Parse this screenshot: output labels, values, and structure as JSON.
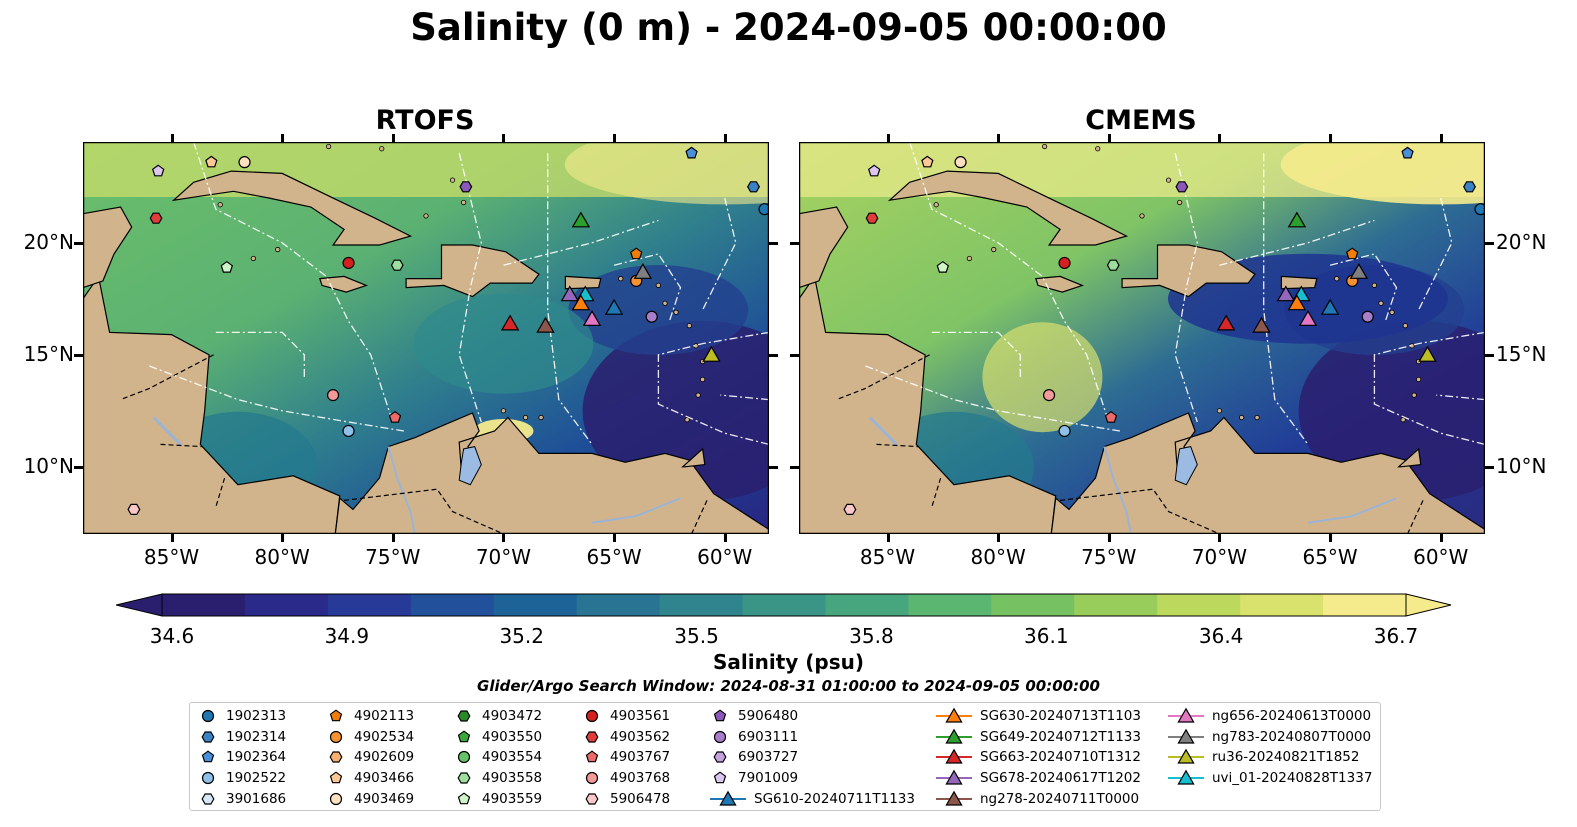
{
  "title": "Salinity (0 m) - 2024-09-05 00:00:00",
  "panels": [
    {
      "title": "RTOFS"
    },
    {
      "title": "CMEMS"
    }
  ],
  "lon_ticks": [
    "85°W",
    "80°W",
    "75°W",
    "70°W",
    "65°W",
    "60°W"
  ],
  "lat_ticks": [
    "20°N",
    "15°N",
    "10°N"
  ],
  "colorbar": {
    "label": "Salinity (psu)",
    "ticks": [
      "34.6",
      "34.9",
      "35.2",
      "35.5",
      "35.8",
      "36.1",
      "36.4",
      "36.7"
    ],
    "colors": [
      "#2a1f6e",
      "#2a2a8a",
      "#273a98",
      "#22509a",
      "#1e6397",
      "#287492",
      "#30848d",
      "#3a9587",
      "#47a67d",
      "#5ab671",
      "#76c262",
      "#98cd5c",
      "#bcd95e",
      "#d9e26d",
      "#f5eb8c"
    ],
    "extend": "both"
  },
  "search_window": "Glider/Argo Search Window: 2024-08-31 01:00:00 to 2024-09-05 00:00:00",
  "legend": [
    {
      "label": "1902313",
      "marker": "circle",
      "color": "#1f77b4"
    },
    {
      "label": "1902314",
      "marker": "hexagon",
      "color": "#3b82c4"
    },
    {
      "label": "1902364",
      "marker": "pentagon",
      "color": "#4a90d9"
    },
    {
      "label": "1902522",
      "marker": "circle",
      "color": "#8fc0ea"
    },
    {
      "label": "3901686",
      "marker": "hexagon",
      "color": "#d6e8f7"
    },
    {
      "label": "4902113",
      "marker": "pentagon",
      "color": "#f07d0a"
    },
    {
      "label": "4902534",
      "marker": "circle",
      "color": "#f5922f"
    },
    {
      "label": "4902609",
      "marker": "hexagon",
      "color": "#f8b070"
    },
    {
      "label": "4903466",
      "marker": "pentagon",
      "color": "#fbc896"
    },
    {
      "label": "4903469",
      "marker": "circle",
      "color": "#fde0c2"
    },
    {
      "label": "4903472",
      "marker": "hexagon",
      "color": "#2a8a2a"
    },
    {
      "label": "4903550",
      "marker": "pentagon",
      "color": "#3aa83a"
    },
    {
      "label": "4903554",
      "marker": "circle",
      "color": "#66c266"
    },
    {
      "label": "4903558",
      "marker": "hexagon",
      "color": "#9ede9e"
    },
    {
      "label": "4903559",
      "marker": "pentagon",
      "color": "#cff5c8"
    },
    {
      "label": "4903561",
      "marker": "circle",
      "color": "#d42020"
    },
    {
      "label": "4903562",
      "marker": "hexagon",
      "color": "#e03c3c"
    },
    {
      "label": "4903767",
      "marker": "pentagon",
      "color": "#ec6a6a"
    },
    {
      "label": "4903768",
      "marker": "circle",
      "color": "#f29a9a"
    },
    {
      "label": "5906478",
      "marker": "hexagon",
      "color": "#fac8c8"
    },
    {
      "label": "5906480",
      "marker": "pentagon",
      "color": "#8a58b8"
    },
    {
      "label": "6903111",
      "marker": "circle",
      "color": "#a87ecb"
    },
    {
      "label": "6903727",
      "marker": "hexagon",
      "color": "#c4a2dd"
    },
    {
      "label": "7901009",
      "marker": "pentagon",
      "color": "#dcc6ee"
    },
    {
      "label": "SG610-20240711T1133",
      "marker": "triangle",
      "color": "#1f77b4"
    },
    {
      "label": "SG630-20240713T1103",
      "marker": "triangle",
      "color": "#ff7f0e"
    },
    {
      "label": "SG649-20240712T1133",
      "marker": "triangle",
      "color": "#2ca02c"
    },
    {
      "label": "SG663-20240710T1312",
      "marker": "triangle",
      "color": "#d62728"
    },
    {
      "label": "SG678-20240617T1202",
      "marker": "triangle",
      "color": "#9467bd"
    },
    {
      "label": "ng278-20240711T0000",
      "marker": "triangle",
      "color": "#8c564b"
    },
    {
      "label": "ng656-20240613T0000",
      "marker": "triangle",
      "color": "#e377c2"
    },
    {
      "label": "ng783-20240807T0000",
      "marker": "triangle",
      "color": "#7f7f7f"
    },
    {
      "label": "ru36-20240821T1852",
      "marker": "triangle",
      "color": "#bcbd22"
    },
    {
      "label": "uvi_01-20240828T1337",
      "marker": "triangle",
      "color": "#17becf"
    }
  ],
  "map_markers": [
    {
      "lon": -85.6,
      "lat": 23.2,
      "marker": "pentagon",
      "color": "#dcc6ee"
    },
    {
      "lon": -83.2,
      "lat": 23.6,
      "marker": "pentagon",
      "color": "#fbc896"
    },
    {
      "lon": -81.7,
      "lat": 23.6,
      "marker": "circle",
      "color": "#fde0c2"
    },
    {
      "lon": -85.7,
      "lat": 21.1,
      "marker": "hexagon",
      "color": "#e03c3c"
    },
    {
      "lon": -82.5,
      "lat": 18.9,
      "marker": "pentagon",
      "color": "#cff5c8"
    },
    {
      "lon": -77.0,
      "lat": 19.1,
      "marker": "circle",
      "color": "#d42020"
    },
    {
      "lon": -74.8,
      "lat": 19.0,
      "marker": "hexagon",
      "color": "#9ede9e"
    },
    {
      "lon": -71.7,
      "lat": 22.5,
      "marker": "hexagon",
      "color": "#8a58b8"
    },
    {
      "lon": -64.0,
      "lat": 19.5,
      "marker": "pentagon",
      "color": "#f07d0a"
    },
    {
      "lon": -64.0,
      "lat": 18.3,
      "marker": "circle",
      "color": "#f5922f"
    },
    {
      "lon": -63.3,
      "lat": 16.7,
      "marker": "circle",
      "color": "#a87ecb"
    },
    {
      "lon": -61.5,
      "lat": 24.0,
      "marker": "pentagon",
      "color": "#4a90d9"
    },
    {
      "lon": -58.7,
      "lat": 22.5,
      "marker": "hexagon",
      "color": "#3b82c4"
    },
    {
      "lon": -58.2,
      "lat": 21.5,
      "marker": "circle",
      "color": "#1f77b4"
    },
    {
      "lon": -77.7,
      "lat": 13.2,
      "marker": "circle",
      "color": "#f29a9a"
    },
    {
      "lon": -77.0,
      "lat": 11.6,
      "marker": "circle",
      "color": "#8fc0ea"
    },
    {
      "lon": -74.9,
      "lat": 12.2,
      "marker": "pentagon",
      "color": "#ec6a6a"
    },
    {
      "lon": -86.7,
      "lat": 8.1,
      "marker": "hexagon",
      "color": "#fac8c8"
    },
    {
      "lon": -66.5,
      "lat": 21.0,
      "marker": "triangle",
      "color": "#2ca02c"
    },
    {
      "lon": -69.7,
      "lat": 16.4,
      "marker": "triangle",
      "color": "#d62728"
    },
    {
      "lon": -68.1,
      "lat": 16.3,
      "marker": "triangle",
      "color": "#8c564b"
    },
    {
      "lon": -67.0,
      "lat": 17.7,
      "marker": "triangle",
      "color": "#9467bd"
    },
    {
      "lon": -66.3,
      "lat": 17.7,
      "marker": "triangle",
      "color": "#17becf"
    },
    {
      "lon": -66.5,
      "lat": 17.3,
      "marker": "triangle",
      "color": "#ff7f0e"
    },
    {
      "lon": -66.0,
      "lat": 16.6,
      "marker": "triangle",
      "color": "#e377c2"
    },
    {
      "lon": -65.0,
      "lat": 17.1,
      "marker": "triangle",
      "color": "#1f77b4"
    },
    {
      "lon": -63.7,
      "lat": 18.7,
      "marker": "triangle",
      "color": "#7f7f7f"
    },
    {
      "lon": -60.6,
      "lat": 15.0,
      "marker": "triangle",
      "color": "#bcbd22"
    }
  ],
  "map_extent": {
    "lon": [
      -89.0,
      -58.0
    ],
    "lat": [
      7.0,
      24.5
    ]
  }
}
